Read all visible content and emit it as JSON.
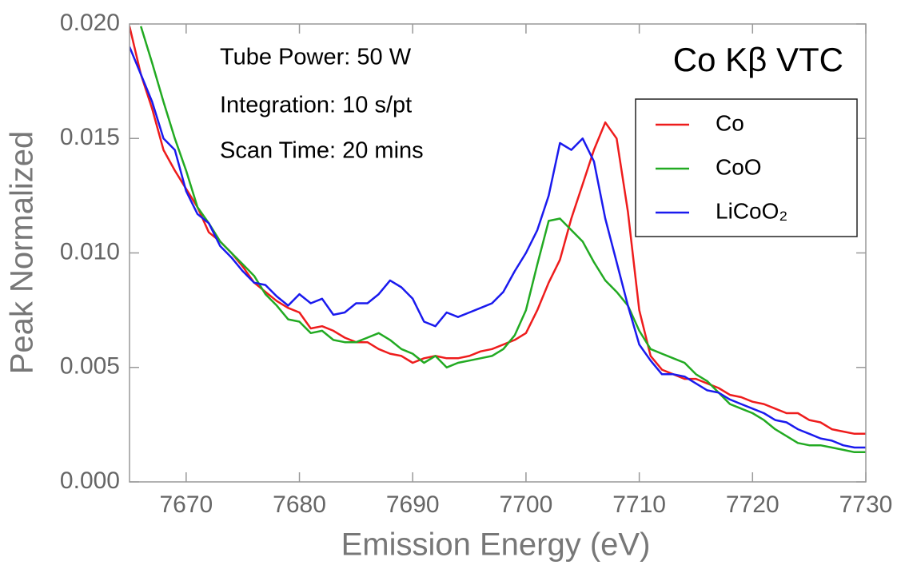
{
  "chart_data": {
    "type": "line",
    "title": "Co Kβ VTC",
    "annotations": [
      "Tube Power: 50 W",
      "Integration: 10 s/pt",
      "Scan Time: 20 mins"
    ],
    "xlabel": "Emission Energy (eV)",
    "ylabel": "Peak Normalized",
    "legend": "upper right",
    "x": [
      7665,
      7666,
      7667,
      7668,
      7669,
      7670,
      7671,
      7672,
      7673,
      7674,
      7675,
      7676,
      7677,
      7678,
      7679,
      7680,
      7681,
      7682,
      7683,
      7684,
      7685,
      7686,
      7687,
      7688,
      7689,
      7690,
      7691,
      7692,
      7693,
      7694,
      7695,
      7696,
      7697,
      7698,
      7699,
      7700,
      7701,
      7702,
      7703,
      7704,
      7705,
      7706,
      7707,
      7708,
      7709,
      7710,
      7711,
      7712,
      7713,
      7714,
      7715,
      7716,
      7717,
      7718,
      7719,
      7720,
      7721,
      7722,
      7723,
      7724,
      7725,
      7726,
      7727,
      7728,
      7729,
      7730
    ],
    "series": [
      {
        "name": "Co",
        "color": "#ee1c1c",
        "values": [
          0.0199,
          0.0178,
          0.0163,
          0.0145,
          0.0136,
          0.0128,
          0.012,
          0.0109,
          0.0105,
          0.01,
          0.0094,
          0.0087,
          0.0083,
          0.0079,
          0.0076,
          0.0074,
          0.0067,
          0.0068,
          0.0066,
          0.0063,
          0.0061,
          0.0061,
          0.0058,
          0.0056,
          0.0055,
          0.0052,
          0.0054,
          0.0055,
          0.0054,
          0.0054,
          0.0055,
          0.0057,
          0.0058,
          0.006,
          0.0062,
          0.0065,
          0.0075,
          0.0087,
          0.0097,
          0.0115,
          0.013,
          0.0145,
          0.0157,
          0.015,
          0.0118,
          0.0075,
          0.0055,
          0.0049,
          0.0047,
          0.0045,
          0.0045,
          0.0043,
          0.0041,
          0.0038,
          0.0037,
          0.0035,
          0.0034,
          0.0032,
          0.003,
          0.003,
          0.0027,
          0.0026,
          0.0023,
          0.0022,
          0.0021,
          0.0021
        ]
      },
      {
        "name": "CoO",
        "color": "#22aa22",
        "values": [
          null,
          0.0199,
          0.0183,
          0.0166,
          0.015,
          0.0136,
          0.012,
          0.0113,
          0.0105,
          0.01,
          0.0095,
          0.009,
          0.0082,
          0.0077,
          0.0071,
          0.007,
          0.0065,
          0.0066,
          0.0062,
          0.0061,
          0.0061,
          0.0063,
          0.0065,
          0.0062,
          0.0058,
          0.0056,
          0.0052,
          0.0055,
          0.005,
          0.0052,
          0.0053,
          0.0054,
          0.0055,
          0.0058,
          0.0064,
          0.0075,
          0.0095,
          0.0114,
          0.0115,
          0.011,
          0.0105,
          0.0096,
          0.0088,
          0.0083,
          0.0077,
          0.0066,
          0.0058,
          0.0056,
          0.0054,
          0.0052,
          0.0047,
          0.0044,
          0.0039,
          0.0034,
          0.0032,
          0.003,
          0.0027,
          0.0023,
          0.002,
          0.0017,
          0.0016,
          0.0016,
          0.0015,
          0.0014,
          0.0013,
          0.0013
        ]
      },
      {
        "name": "LiCoO₂",
        "color": "#1a1aee",
        "values": [
          0.019,
          0.0178,
          0.0166,
          0.015,
          0.0145,
          0.0127,
          0.0117,
          0.0113,
          0.0103,
          0.0098,
          0.0092,
          0.0087,
          0.0086,
          0.0081,
          0.0077,
          0.0082,
          0.0078,
          0.008,
          0.0073,
          0.0074,
          0.0078,
          0.0078,
          0.0082,
          0.0088,
          0.0085,
          0.008,
          0.007,
          0.0068,
          0.0074,
          0.0072,
          0.0074,
          0.0076,
          0.0078,
          0.0083,
          0.0092,
          0.01,
          0.011,
          0.0125,
          0.0148,
          0.0145,
          0.015,
          0.014,
          0.0115,
          0.0096,
          0.0077,
          0.006,
          0.0053,
          0.0047,
          0.0047,
          0.0046,
          0.0043,
          0.004,
          0.0039,
          0.0036,
          0.0034,
          0.0032,
          0.003,
          0.0027,
          0.0026,
          0.0023,
          0.0021,
          0.0019,
          0.0018,
          0.0016,
          0.0015,
          0.0015
        ]
      }
    ],
    "xlim": [
      7665,
      7730
    ],
    "xticks": [
      7670,
      7680,
      7690,
      7700,
      7710,
      7720,
      7730
    ],
    "ylim": [
      0,
      0.02
    ],
    "yticks": [
      {
        "value": 0,
        "label": "0.000"
      },
      {
        "value": 0.005,
        "label": "0.005"
      },
      {
        "value": 0.01,
        "label": "0.010"
      },
      {
        "value": 0.015,
        "label": "0.015"
      },
      {
        "value": 0.02,
        "label": "0.020"
      }
    ]
  }
}
